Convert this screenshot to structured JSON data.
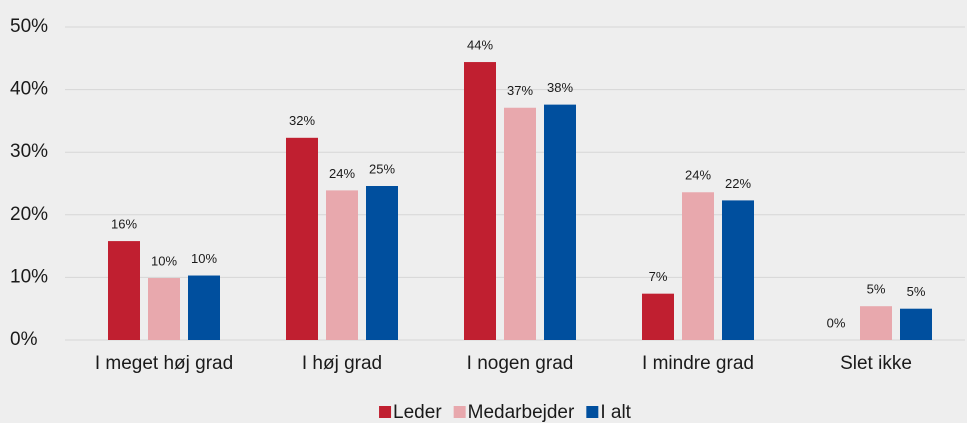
{
  "chart_data": {
    "type": "bar",
    "categories": [
      "I meget høj grad",
      "I høj grad",
      "I nogen grad",
      "I mindre grad",
      "Slet ikke"
    ],
    "series": [
      {
        "name": "Leder",
        "color": "#c01f30",
        "values": [
          15.8,
          32.3,
          44.4,
          7.4,
          0
        ],
        "value_labels": [
          "16%",
          "32%",
          "44%",
          "7%",
          "0%"
        ]
      },
      {
        "name": "Medarbejder",
        "color": "#e8a8ad",
        "values": [
          9.9,
          23.9,
          37.1,
          23.6,
          5.4
        ],
        "value_labels": [
          "10%",
          "24%",
          "37%",
          "24%",
          "5%"
        ]
      },
      {
        "name": "I alt",
        "color": "#004f9e",
        "values": [
          10.3,
          24.6,
          37.6,
          22.3,
          5.0
        ],
        "value_labels": [
          "10%",
          "25%",
          "38%",
          "22%",
          "5%"
        ]
      }
    ],
    "ylim": [
      0,
      50
    ],
    "yticks": [
      {
        "value": 0,
        "label": "0%"
      },
      {
        "value": 10,
        "label": "10%"
      },
      {
        "value": 20,
        "label": "20%"
      },
      {
        "value": 30,
        "label": "30%"
      },
      {
        "value": 40,
        "label": "40%"
      },
      {
        "value": 50,
        "label": "50%"
      }
    ],
    "grid": true,
    "legend": "bottom"
  }
}
